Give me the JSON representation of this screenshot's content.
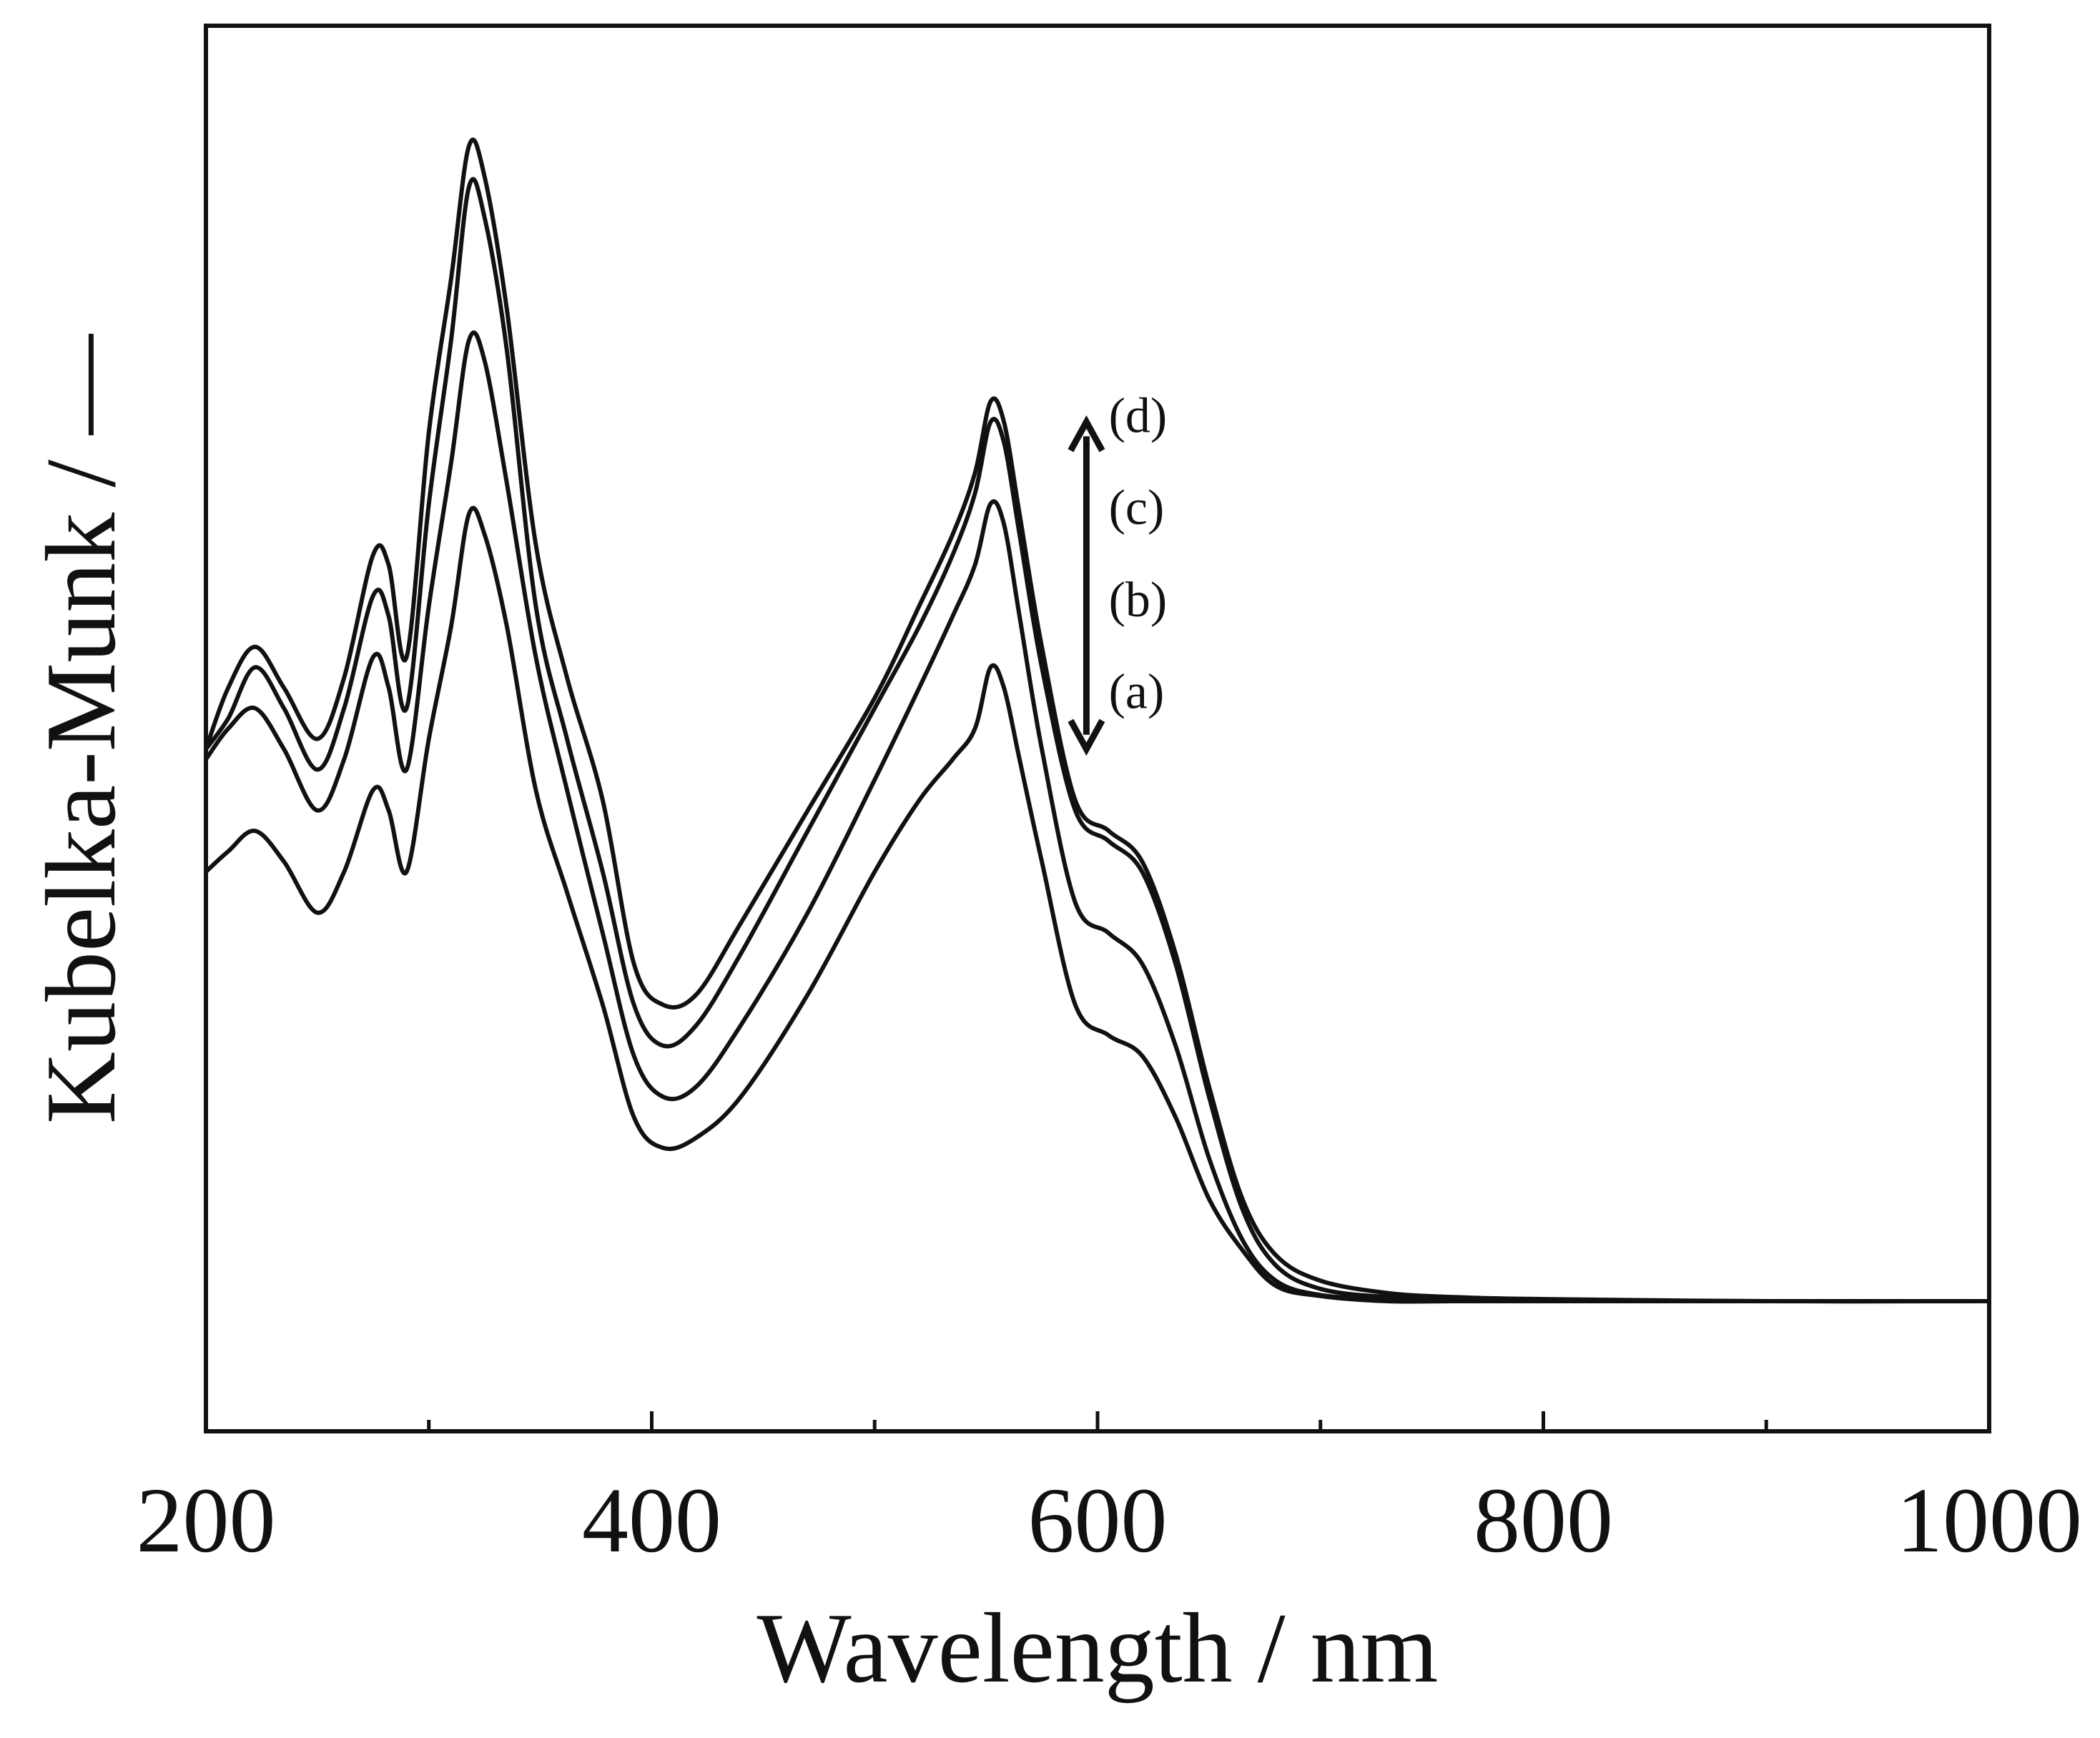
{
  "chart_data": {
    "type": "line",
    "title": "",
    "xlabel": "Wavelength  / nm",
    "ylabel": "Kubelka-Munk  /  —",
    "xlim": [
      200,
      1000
    ],
    "ylim": [
      0,
      1
    ],
    "x_ticks": [
      200,
      400,
      600,
      800,
      1000
    ],
    "x_minor_ticks": [
      300,
      500,
      700,
      900
    ],
    "x_tick_labels": [
      "200",
      "400",
      "600",
      "800",
      "1000"
    ],
    "grid": false,
    "arrow": {
      "direction": "both",
      "x": 595,
      "y_range": [
        0.54,
        0.86
      ]
    },
    "series": [
      {
        "name": "(a)",
        "label_x": 605,
        "label_y": 0.58,
        "x": [
          200,
          210,
          222,
          235,
          250,
          262,
          275,
          282,
          290,
          300,
          310,
          318,
          325,
          335,
          348,
          362,
          378,
          392,
          405,
          420,
          440,
          470,
          500,
          520,
          535,
          545,
          552,
          558,
          565,
          575,
          590,
          605,
          620,
          635,
          650,
          665,
          680,
          700,
          730,
          760,
          800,
          900,
          1000
        ],
        "y": [
          0.42,
          0.44,
          0.46,
          0.43,
          0.38,
          0.42,
          0.5,
          0.48,
          0.42,
          0.55,
          0.66,
          0.77,
          0.75,
          0.66,
          0.5,
          0.4,
          0.29,
          0.18,
          0.15,
          0.16,
          0.2,
          0.3,
          0.42,
          0.49,
          0.53,
          0.56,
          0.62,
          0.6,
          0.53,
          0.43,
          0.29,
          0.26,
          0.24,
          0.18,
          0.1,
          0.05,
          0.015,
          0.005,
          0.0,
          0.0,
          0.0,
          0.0,
          0.0
        ]
      },
      {
        "name": "(b)",
        "label_x": 605,
        "label_y": 0.67,
        "x": [
          200,
          210,
          222,
          235,
          250,
          262,
          275,
          282,
          290,
          300,
          310,
          318,
          325,
          335,
          348,
          362,
          378,
          392,
          405,
          420,
          440,
          470,
          500,
          520,
          535,
          545,
          552,
          558,
          565,
          575,
          590,
          605,
          620,
          635,
          650,
          665,
          680,
          700,
          730,
          760,
          800,
          900,
          1000
        ],
        "y": [
          0.53,
          0.56,
          0.58,
          0.54,
          0.48,
          0.53,
          0.63,
          0.6,
          0.52,
          0.68,
          0.82,
          0.94,
          0.92,
          0.8,
          0.63,
          0.5,
          0.36,
          0.24,
          0.2,
          0.21,
          0.27,
          0.38,
          0.51,
          0.6,
          0.67,
          0.72,
          0.78,
          0.76,
          0.67,
          0.54,
          0.39,
          0.36,
          0.33,
          0.25,
          0.14,
          0.06,
          0.02,
          0.006,
          0.002,
          0.001,
          0.0,
          0.0,
          0.0
        ]
      },
      {
        "name": "(c)",
        "label_x": 605,
        "label_y": 0.76,
        "x": [
          200,
          210,
          222,
          235,
          250,
          262,
          275,
          282,
          290,
          300,
          310,
          318,
          325,
          335,
          348,
          362,
          378,
          392,
          405,
          420,
          440,
          470,
          500,
          520,
          535,
          545,
          552,
          558,
          565,
          575,
          590,
          605,
          620,
          635,
          650,
          665,
          680,
          700,
          730,
          760,
          800,
          900,
          1000
        ],
        "y": [
          0.54,
          0.57,
          0.62,
          0.58,
          0.52,
          0.58,
          0.69,
          0.67,
          0.58,
          0.78,
          0.94,
          1.09,
          1.06,
          0.93,
          0.68,
          0.55,
          0.42,
          0.29,
          0.25,
          0.27,
          0.34,
          0.46,
          0.58,
          0.66,
          0.73,
          0.79,
          0.86,
          0.84,
          0.75,
          0.62,
          0.48,
          0.45,
          0.42,
          0.33,
          0.2,
          0.09,
          0.035,
          0.012,
          0.004,
          0.002,
          0.001,
          0.0,
          0.0
        ]
      },
      {
        "name": "(d)",
        "label_x": 605,
        "label_y": 0.85,
        "x": [
          200,
          210,
          222,
          235,
          250,
          262,
          275,
          282,
          290,
          300,
          310,
          318,
          325,
          335,
          348,
          362,
          378,
          392,
          405,
          420,
          440,
          470,
          500,
          520,
          535,
          545,
          552,
          558,
          565,
          575,
          590,
          605,
          620,
          635,
          650,
          665,
          680,
          700,
          730,
          760,
          800,
          900,
          1000
        ],
        "y": [
          0.54,
          0.6,
          0.64,
          0.6,
          0.55,
          0.61,
          0.73,
          0.72,
          0.63,
          0.85,
          1.0,
          1.13,
          1.1,
          0.97,
          0.74,
          0.61,
          0.49,
          0.33,
          0.29,
          0.3,
          0.37,
          0.48,
          0.59,
          0.68,
          0.75,
          0.81,
          0.88,
          0.86,
          0.77,
          0.64,
          0.49,
          0.46,
          0.43,
          0.34,
          0.21,
          0.1,
          0.045,
          0.02,
          0.008,
          0.004,
          0.002,
          0.0,
          0.0
        ]
      }
    ]
  }
}
